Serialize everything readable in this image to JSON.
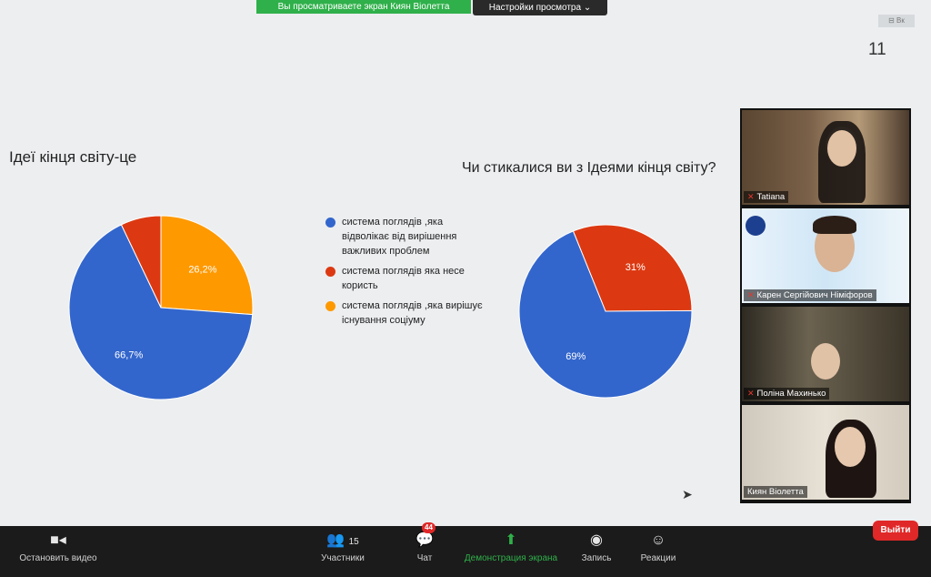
{
  "banner": {
    "text": "Вы просматриваете экран Киян Віолетта",
    "view_options": "Настройки просмотра ⌄"
  },
  "slide": {
    "page_number": "11",
    "left_title": "Ідеї кінця світу-це",
    "right_title": "Чи стикалися ви з Ідеями кінця світу?",
    "corner_label": "⊟ Вк"
  },
  "chart_data": [
    {
      "type": "pie",
      "title": "Ідеї кінця світу-це",
      "categories": [
        "система поглядів ,яка відволікає від вирішення важливих проблем",
        "система поглядів яка несе користь",
        "система поглядів ,яка вирішує існування соціуму"
      ],
      "values": [
        66.7,
        7.1,
        26.2
      ],
      "labels": [
        "66,7%",
        "",
        "26,2%"
      ],
      "colors": [
        "#3366cc",
        "#dc3912",
        "#ff9900"
      ]
    },
    {
      "type": "pie",
      "title": "Чи стикалися ви з Ідеями кінця світу?",
      "categories": [
        "система поглядів ,яка відволікає від вирішення важливих проблем",
        "система поглядів яка несе користь"
      ],
      "values": [
        69,
        31
      ],
      "labels": [
        "69%",
        "31%"
      ],
      "colors": [
        "#3366cc",
        "#dc3912"
      ]
    }
  ],
  "legend": [
    {
      "label": "система поглядів ,яка відволікає від вирішення важливих проблем",
      "color": "#3366cc"
    },
    {
      "label": "система поглядів яка несе користь",
      "color": "#dc3912"
    },
    {
      "label": "система поглядів ,яка вирішує існування соціуму",
      "color": "#ff9900"
    }
  ],
  "participants": [
    {
      "name": "Tatiana",
      "muted": true
    },
    {
      "name": "Карен Сергійович Німіфоров",
      "muted": true
    },
    {
      "name": "Поліна Махинько",
      "muted": true
    },
    {
      "name": "Киян Віолетта",
      "muted": false
    }
  ],
  "toolbar": {
    "stop_video": "Остановить видео",
    "participants": "Участники",
    "participants_count": "15",
    "chat": "Чат",
    "chat_badge": "44",
    "share_screen": "Демонстрация экрана",
    "record": "Запись",
    "reactions": "Реакции",
    "leave": "Выйти"
  },
  "colors": {
    "share_green": "#2fb04a",
    "leave_red": "#e02828"
  }
}
